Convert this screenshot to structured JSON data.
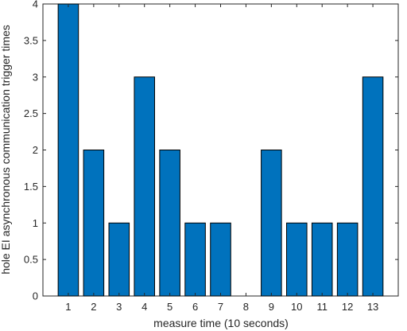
{
  "chart_data": {
    "type": "bar",
    "categories": [
      "1",
      "2",
      "3",
      "4",
      "5",
      "6",
      "7",
      "8",
      "9",
      "10",
      "11",
      "12",
      "13"
    ],
    "values": [
      4,
      2,
      1,
      3,
      2,
      1,
      1,
      0,
      2,
      1,
      1,
      1,
      3
    ],
    "xlabel": "measure time (10 seconds)",
    "ylabel": "hole EI asynchronous communication trigger times",
    "ylim": [
      0,
      4
    ],
    "yticks": [
      "0",
      "0.5",
      "1",
      "1.5",
      "2",
      "2.5",
      "3",
      "3.5",
      "4"
    ],
    "grid": false,
    "bar_color": "#0072bd"
  }
}
